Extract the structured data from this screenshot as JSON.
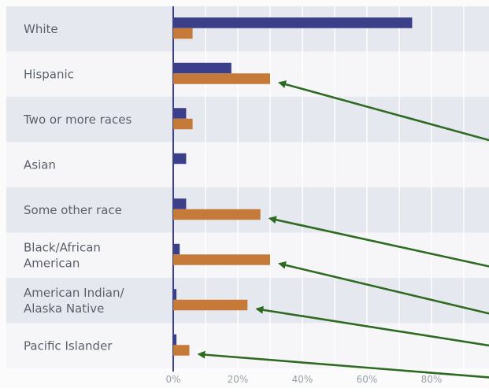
{
  "chart_data": {
    "type": "bar",
    "orientation": "horizontal",
    "categories": [
      [
        "White"
      ],
      [
        "Hispanic"
      ],
      [
        "Two or more races"
      ],
      [
        "Asian"
      ],
      [
        "Some other race"
      ],
      [
        "Black/African",
        "American"
      ],
      [
        "American Indian/",
        "Alaska Native"
      ],
      [
        "Pacific Islander"
      ]
    ],
    "series": [
      {
        "color": "#3b3f8a",
        "values": [
          74,
          18,
          4,
          4,
          4,
          2,
          1,
          1
        ]
      },
      {
        "color": "#c57a3a",
        "values": [
          6,
          30,
          6,
          0,
          27,
          30,
          23,
          5
        ]
      }
    ],
    "x_ticks": [
      "0%",
      "20%",
      "40%",
      "60%",
      "80%"
    ],
    "x_tick_values": [
      0,
      20,
      40,
      60,
      80
    ],
    "xlim": [
      0,
      100
    ],
    "grid": true,
    "legend": "none",
    "annotations": {
      "arrow_color": "#2f6a22",
      "arrow_count": 6
    }
  }
}
